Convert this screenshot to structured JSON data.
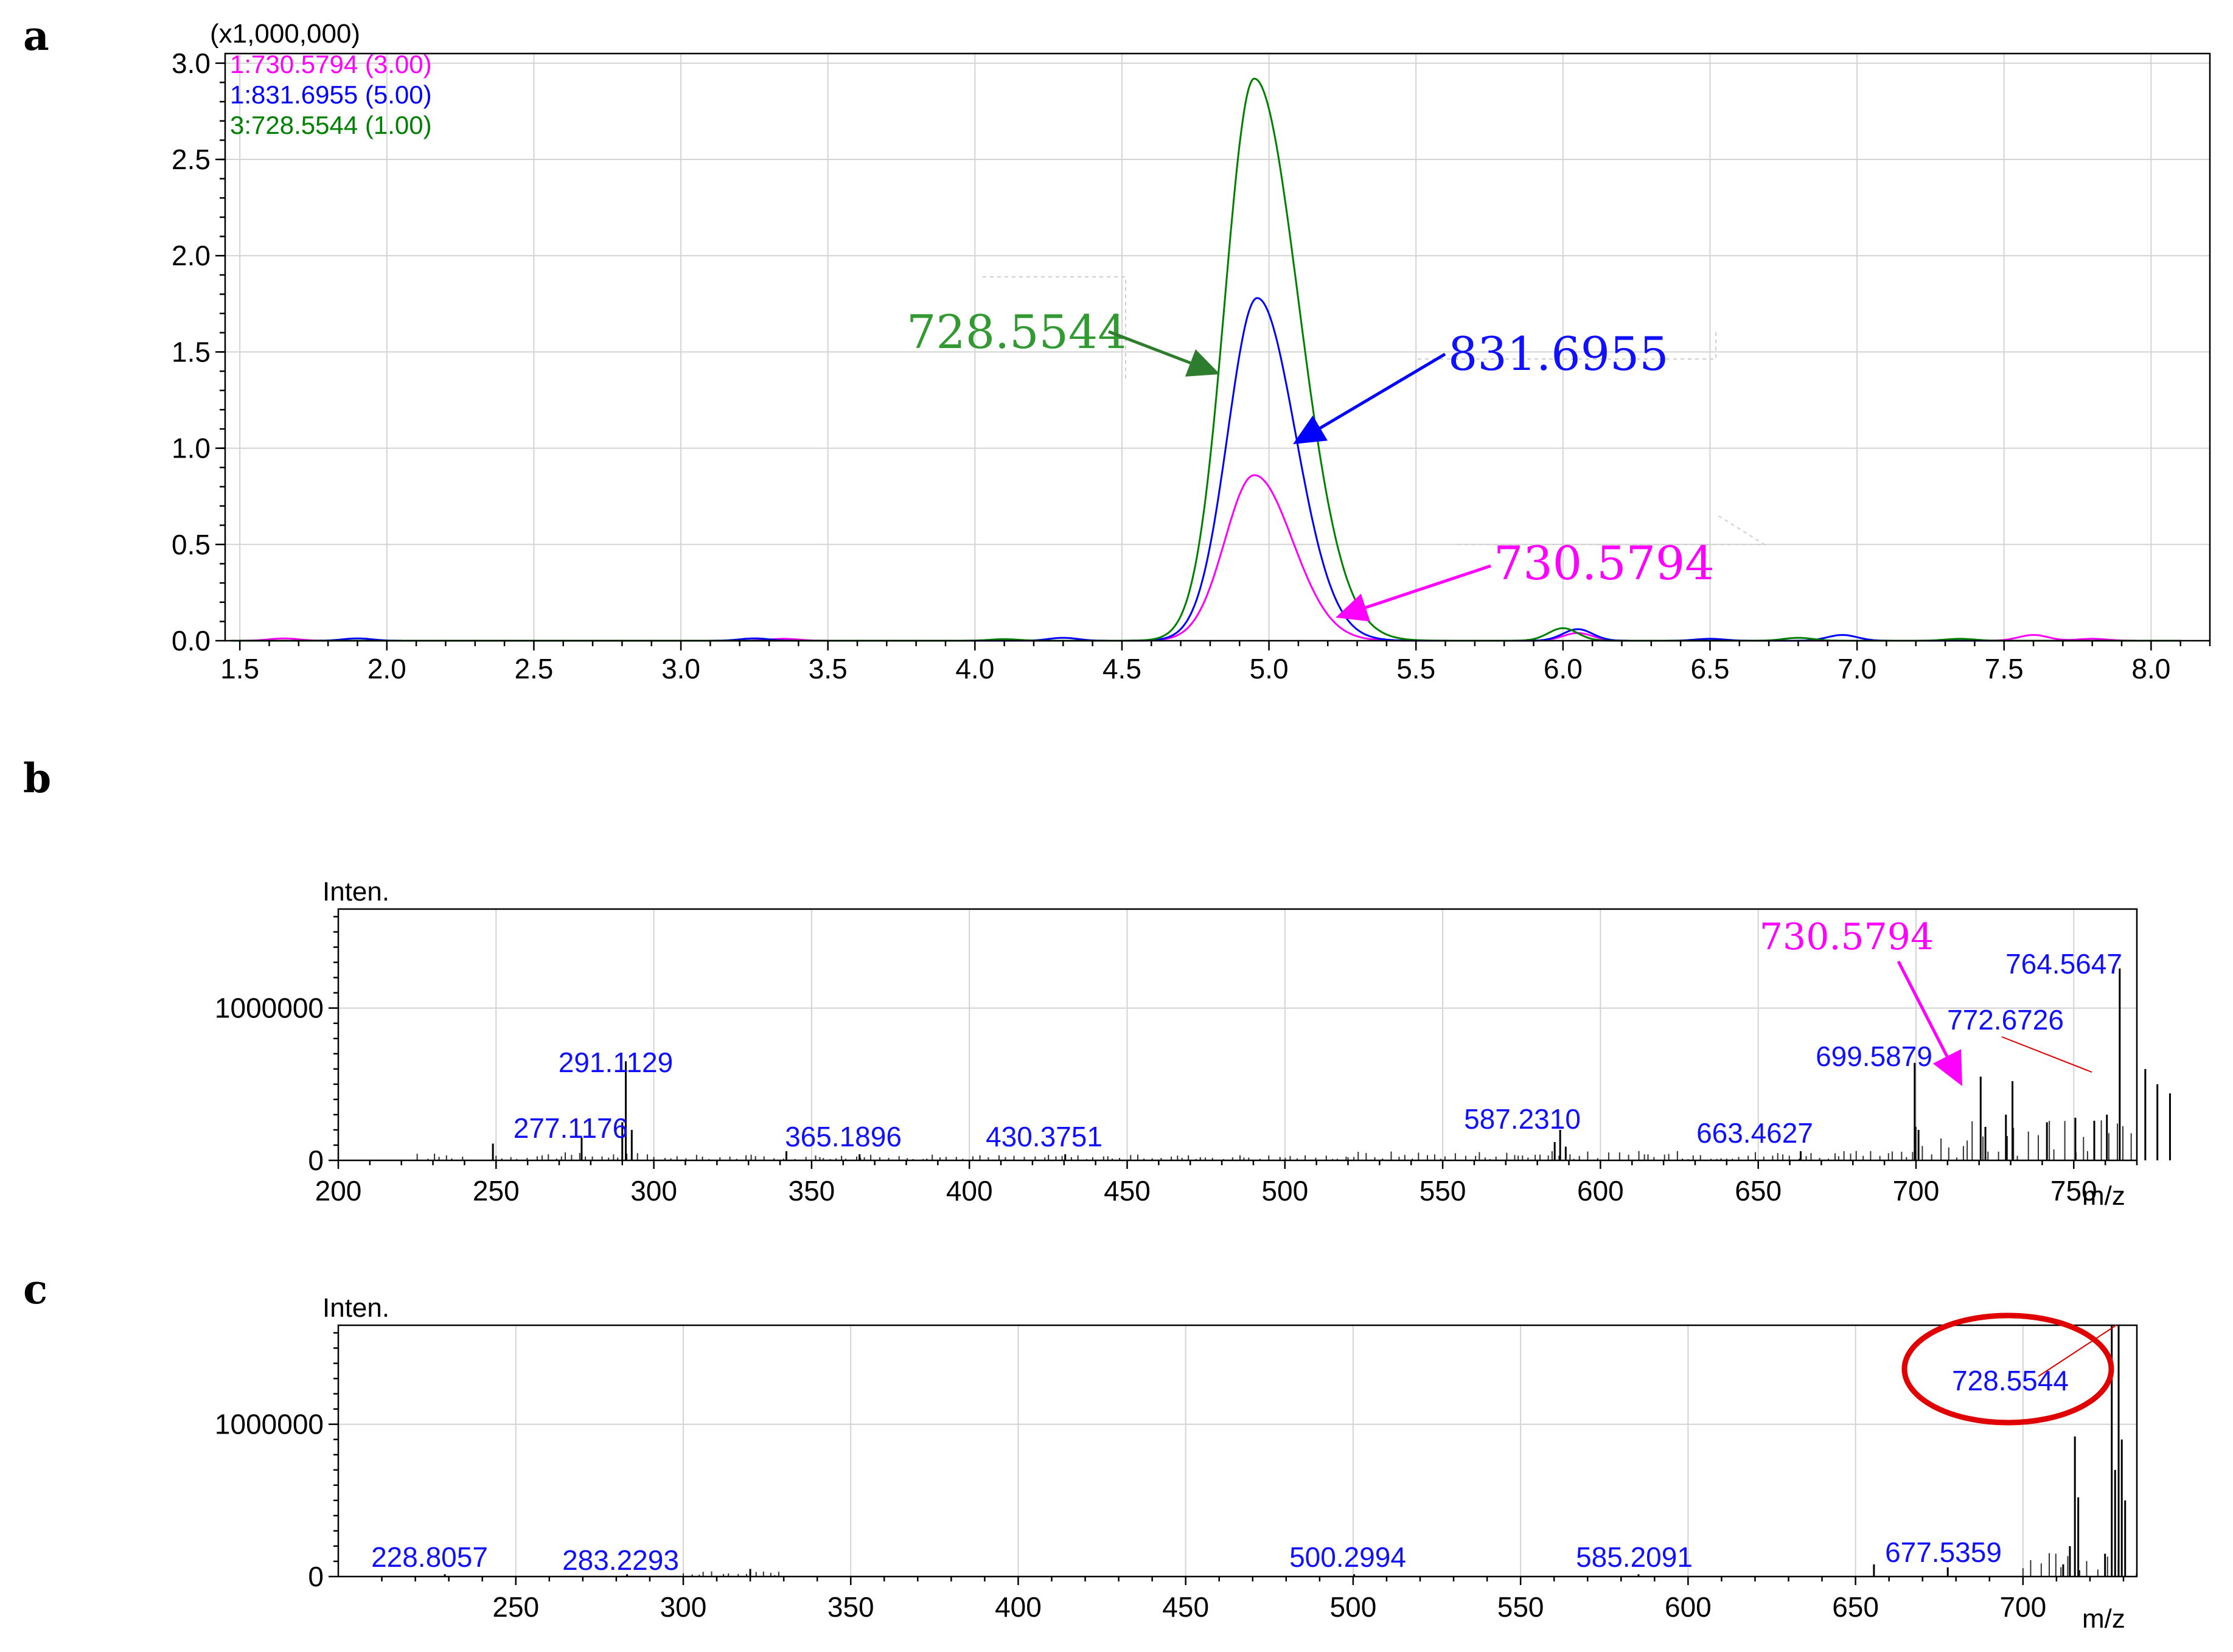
{
  "panels": {
    "a": "a",
    "b": "b",
    "c": "c"
  },
  "chart_data": [
    {
      "type": "line",
      "id": "a",
      "scale_label": "(x1,000,000)",
      "xlim": [
        1.45,
        8.2
      ],
      "ylim": [
        0,
        3.05
      ],
      "xticks": [
        1.5,
        2.0,
        2.5,
        3.0,
        3.5,
        4.0,
        4.5,
        5.0,
        5.5,
        6.0,
        6.5,
        7.0,
        7.5,
        8.0
      ],
      "xtick_labels": [
        "1.5",
        "2.0",
        "2.5",
        "3.0",
        "3.5",
        "4.0",
        "4.5",
        "5.0",
        "5.5",
        "6.0",
        "6.5",
        "7.0",
        "7.5",
        "8.0"
      ],
      "yticks": [
        0,
        0.5,
        1.0,
        1.5,
        2.0,
        2.5,
        3.0
      ],
      "ytick_labels": [
        "0.0",
        "0.5",
        "1.0",
        "1.5",
        "2.0",
        "2.5",
        "3.0"
      ],
      "grid": true,
      "legend_position": "top-left",
      "series": [
        {
          "name": "1:730.5794 (3.00)",
          "color": "#ff00ff",
          "peak_center": 4.95,
          "peak_height": 0.86,
          "sigma_left": 0.1,
          "sigma_right": 0.13,
          "bumps": [
            [
              1.65,
              0.012
            ],
            [
              3.35,
              0.01
            ],
            [
              6.05,
              0.04
            ],
            [
              7.6,
              0.03
            ],
            [
              7.8,
              0.01
            ]
          ]
        },
        {
          "name": "1:831.6955 (5.00)",
          "color": "#0000ff",
          "peak_center": 4.96,
          "peak_height": 1.78,
          "sigma_left": 0.1,
          "sigma_right": 0.13,
          "bumps": [
            [
              1.9,
              0.012
            ],
            [
              3.25,
              0.012
            ],
            [
              4.3,
              0.015
            ],
            [
              6.05,
              0.06
            ],
            [
              6.5,
              0.01
            ],
            [
              6.95,
              0.03
            ]
          ]
        },
        {
          "name": "3:728.5544 (1.00)",
          "color": "#008000",
          "peak_center": 4.95,
          "peak_height": 2.92,
          "sigma_left": 0.1,
          "sigma_right": 0.15,
          "bumps": [
            [
              4.1,
              0.008
            ],
            [
              6.0,
              0.065
            ],
            [
              6.8,
              0.015
            ],
            [
              7.35,
              0.01
            ]
          ]
        }
      ],
      "annotations": [
        {
          "text": "728.5544",
          "color": "#339933"
        },
        {
          "text": "831.6955",
          "color": "#1010ff"
        },
        {
          "text": "730.5794",
          "color": "#ff00ff"
        }
      ]
    },
    {
      "type": "bar",
      "id": "b",
      "ylabel": "Inten.",
      "xlabel": "m/z",
      "xlim": [
        200,
        770
      ],
      "ylim": [
        0,
        1650000
      ],
      "xticks": [
        200,
        250,
        300,
        350,
        400,
        450,
        500,
        550,
        600,
        650,
        700,
        750
      ],
      "xtick_labels": [
        "200",
        "250",
        "300",
        "350",
        "400",
        "450",
        "500",
        "550",
        "600",
        "650",
        "700",
        "750"
      ],
      "yticks": [
        0,
        1000000
      ],
      "ytick_labels": [
        "0",
        "1000000"
      ],
      "grid": true,
      "peaks": [
        {
          "mz": 291.1129,
          "intensity": 650000,
          "label": "291.1129"
        },
        {
          "mz": 277.1176,
          "intensity": 150000,
          "label": "277.1176"
        },
        {
          "mz": 365.1896,
          "intensity": 40000,
          "label": "365.1896"
        },
        {
          "mz": 430.3751,
          "intensity": 40000,
          "label": "430.3751"
        },
        {
          "mz": 587.231,
          "intensity": 200000,
          "label": "587.2310"
        },
        {
          "mz": 663.4627,
          "intensity": 60000,
          "label": "663.4627"
        },
        {
          "mz": 699.5879,
          "intensity": 640000,
          "label": "699.5879"
        },
        {
          "mz": 764.5647,
          "intensity": 1260000,
          "label": "764.5647"
        },
        {
          "mz": 772.6726,
          "intensity": 600000,
          "label": "772.6726"
        },
        {
          "mz": 720.5,
          "intensity": 550000
        },
        {
          "mz": 730.5794,
          "intensity": 520000
        },
        {
          "mz": 728.5,
          "intensity": 300000
        },
        {
          "mz": 741.5,
          "intensity": 250000
        },
        {
          "mz": 750.5,
          "intensity": 280000
        },
        {
          "mz": 756.5,
          "intensity": 260000
        },
        {
          "mz": 760.5,
          "intensity": 300000
        },
        {
          "mz": 776.5,
          "intensity": 500000
        },
        {
          "mz": 780.5,
          "intensity": 440000
        },
        {
          "mz": 249.0,
          "intensity": 110000
        },
        {
          "mz": 290.0,
          "intensity": 250000
        },
        {
          "mz": 293.0,
          "intensity": 200000
        },
        {
          "mz": 342.0,
          "intensity": 60000
        },
        {
          "mz": 585.5,
          "intensity": 120000
        },
        {
          "mz": 589.0,
          "intensity": 90000
        },
        {
          "mz": 700.8,
          "intensity": 200000
        },
        {
          "mz": 722.0,
          "intensity": 220000
        }
      ],
      "annotations": [
        {
          "text": "730.5794",
          "color": "#ff00ff"
        }
      ]
    },
    {
      "type": "bar",
      "id": "c",
      "ylabel": "Inten.",
      "xlabel": "m/z",
      "xlim": [
        197,
        734
      ],
      "ylim": [
        0,
        1650000
      ],
      "xticks": [
        250,
        300,
        350,
        400,
        450,
        500,
        550,
        600,
        650,
        700
      ],
      "xtick_labels": [
        "250",
        "300",
        "350",
        "400",
        "450",
        "500",
        "550",
        "600",
        "650",
        "700"
      ],
      "yticks": [
        0,
        1000000
      ],
      "ytick_labels": [
        "0",
        "1000000"
      ],
      "grid": true,
      "peaks": [
        {
          "mz": 728.5544,
          "intensity": 1650000,
          "label": "728.5544"
        },
        {
          "mz": 228.8057,
          "intensity": 15000,
          "label": "228.8057"
        },
        {
          "mz": 283.2293,
          "intensity": 15000,
          "label": "283.2293"
        },
        {
          "mz": 500.2994,
          "intensity": 15000,
          "label": "500.2994"
        },
        {
          "mz": 585.2091,
          "intensity": 15000,
          "label": "585.2091"
        },
        {
          "mz": 677.5359,
          "intensity": 60000,
          "label": "677.5359"
        },
        {
          "mz": 715.5,
          "intensity": 920000
        },
        {
          "mz": 716.5,
          "intensity": 520000
        },
        {
          "mz": 714.0,
          "intensity": 200000
        },
        {
          "mz": 726.5,
          "intensity": 1650000
        },
        {
          "mz": 727.5,
          "intensity": 700000
        },
        {
          "mz": 729.5,
          "intensity": 900000
        },
        {
          "mz": 730.5,
          "intensity": 500000
        },
        {
          "mz": 724.5,
          "intensity": 150000
        },
        {
          "mz": 320.0,
          "intensity": 50000
        },
        {
          "mz": 655.5,
          "intensity": 80000
        },
        {
          "mz": 712.0,
          "intensity": 80000
        }
      ]
    }
  ]
}
